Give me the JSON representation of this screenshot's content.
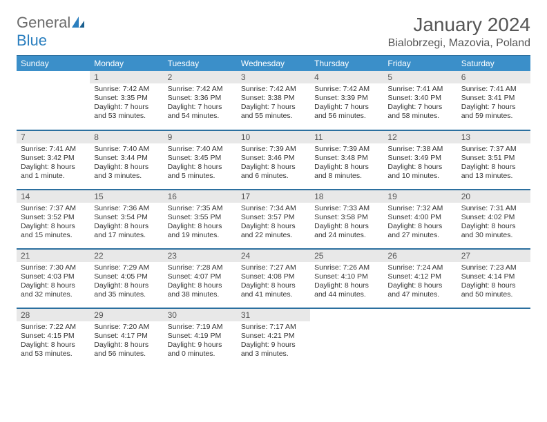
{
  "brand": {
    "word1": "General",
    "word2": "Blue"
  },
  "header": {
    "month": "January 2024",
    "location": "Bialobrzegi, Mazovia, Poland"
  },
  "colors": {
    "header_bg": "#3b8fc9",
    "header_border": "#2b6f9f",
    "row_border": "#2b6f9f",
    "daynum_bg": "#e8e8e8",
    "text": "#333333",
    "logo_gray": "#6b6b6b",
    "logo_blue": "#2b7fbf"
  },
  "weekdays": [
    "Sunday",
    "Monday",
    "Tuesday",
    "Wednesday",
    "Thursday",
    "Friday",
    "Saturday"
  ],
  "weeks": [
    [
      {
        "n": "",
        "sr": "",
        "ss": "",
        "dl": "",
        "empty": true
      },
      {
        "n": "1",
        "sr": "Sunrise: 7:42 AM",
        "ss": "Sunset: 3:35 PM",
        "dl": "Daylight: 7 hours and 53 minutes."
      },
      {
        "n": "2",
        "sr": "Sunrise: 7:42 AM",
        "ss": "Sunset: 3:36 PM",
        "dl": "Daylight: 7 hours and 54 minutes."
      },
      {
        "n": "3",
        "sr": "Sunrise: 7:42 AM",
        "ss": "Sunset: 3:38 PM",
        "dl": "Daylight: 7 hours and 55 minutes."
      },
      {
        "n": "4",
        "sr": "Sunrise: 7:42 AM",
        "ss": "Sunset: 3:39 PM",
        "dl": "Daylight: 7 hours and 56 minutes."
      },
      {
        "n": "5",
        "sr": "Sunrise: 7:41 AM",
        "ss": "Sunset: 3:40 PM",
        "dl": "Daylight: 7 hours and 58 minutes."
      },
      {
        "n": "6",
        "sr": "Sunrise: 7:41 AM",
        "ss": "Sunset: 3:41 PM",
        "dl": "Daylight: 7 hours and 59 minutes."
      }
    ],
    [
      {
        "n": "7",
        "sr": "Sunrise: 7:41 AM",
        "ss": "Sunset: 3:42 PM",
        "dl": "Daylight: 8 hours and 1 minute."
      },
      {
        "n": "8",
        "sr": "Sunrise: 7:40 AM",
        "ss": "Sunset: 3:44 PM",
        "dl": "Daylight: 8 hours and 3 minutes."
      },
      {
        "n": "9",
        "sr": "Sunrise: 7:40 AM",
        "ss": "Sunset: 3:45 PM",
        "dl": "Daylight: 8 hours and 5 minutes."
      },
      {
        "n": "10",
        "sr": "Sunrise: 7:39 AM",
        "ss": "Sunset: 3:46 PM",
        "dl": "Daylight: 8 hours and 6 minutes."
      },
      {
        "n": "11",
        "sr": "Sunrise: 7:39 AM",
        "ss": "Sunset: 3:48 PM",
        "dl": "Daylight: 8 hours and 8 minutes."
      },
      {
        "n": "12",
        "sr": "Sunrise: 7:38 AM",
        "ss": "Sunset: 3:49 PM",
        "dl": "Daylight: 8 hours and 10 minutes."
      },
      {
        "n": "13",
        "sr": "Sunrise: 7:37 AM",
        "ss": "Sunset: 3:51 PM",
        "dl": "Daylight: 8 hours and 13 minutes."
      }
    ],
    [
      {
        "n": "14",
        "sr": "Sunrise: 7:37 AM",
        "ss": "Sunset: 3:52 PM",
        "dl": "Daylight: 8 hours and 15 minutes."
      },
      {
        "n": "15",
        "sr": "Sunrise: 7:36 AM",
        "ss": "Sunset: 3:54 PM",
        "dl": "Daylight: 8 hours and 17 minutes."
      },
      {
        "n": "16",
        "sr": "Sunrise: 7:35 AM",
        "ss": "Sunset: 3:55 PM",
        "dl": "Daylight: 8 hours and 19 minutes."
      },
      {
        "n": "17",
        "sr": "Sunrise: 7:34 AM",
        "ss": "Sunset: 3:57 PM",
        "dl": "Daylight: 8 hours and 22 minutes."
      },
      {
        "n": "18",
        "sr": "Sunrise: 7:33 AM",
        "ss": "Sunset: 3:58 PM",
        "dl": "Daylight: 8 hours and 24 minutes."
      },
      {
        "n": "19",
        "sr": "Sunrise: 7:32 AM",
        "ss": "Sunset: 4:00 PM",
        "dl": "Daylight: 8 hours and 27 minutes."
      },
      {
        "n": "20",
        "sr": "Sunrise: 7:31 AM",
        "ss": "Sunset: 4:02 PM",
        "dl": "Daylight: 8 hours and 30 minutes."
      }
    ],
    [
      {
        "n": "21",
        "sr": "Sunrise: 7:30 AM",
        "ss": "Sunset: 4:03 PM",
        "dl": "Daylight: 8 hours and 32 minutes."
      },
      {
        "n": "22",
        "sr": "Sunrise: 7:29 AM",
        "ss": "Sunset: 4:05 PM",
        "dl": "Daylight: 8 hours and 35 minutes."
      },
      {
        "n": "23",
        "sr": "Sunrise: 7:28 AM",
        "ss": "Sunset: 4:07 PM",
        "dl": "Daylight: 8 hours and 38 minutes."
      },
      {
        "n": "24",
        "sr": "Sunrise: 7:27 AM",
        "ss": "Sunset: 4:08 PM",
        "dl": "Daylight: 8 hours and 41 minutes."
      },
      {
        "n": "25",
        "sr": "Sunrise: 7:26 AM",
        "ss": "Sunset: 4:10 PM",
        "dl": "Daylight: 8 hours and 44 minutes."
      },
      {
        "n": "26",
        "sr": "Sunrise: 7:24 AM",
        "ss": "Sunset: 4:12 PM",
        "dl": "Daylight: 8 hours and 47 minutes."
      },
      {
        "n": "27",
        "sr": "Sunrise: 7:23 AM",
        "ss": "Sunset: 4:14 PM",
        "dl": "Daylight: 8 hours and 50 minutes."
      }
    ],
    [
      {
        "n": "28",
        "sr": "Sunrise: 7:22 AM",
        "ss": "Sunset: 4:15 PM",
        "dl": "Daylight: 8 hours and 53 minutes."
      },
      {
        "n": "29",
        "sr": "Sunrise: 7:20 AM",
        "ss": "Sunset: 4:17 PM",
        "dl": "Daylight: 8 hours and 56 minutes."
      },
      {
        "n": "30",
        "sr": "Sunrise: 7:19 AM",
        "ss": "Sunset: 4:19 PM",
        "dl": "Daylight: 9 hours and 0 minutes."
      },
      {
        "n": "31",
        "sr": "Sunrise: 7:17 AM",
        "ss": "Sunset: 4:21 PM",
        "dl": "Daylight: 9 hours and 3 minutes."
      },
      {
        "n": "",
        "sr": "",
        "ss": "",
        "dl": "",
        "empty": true
      },
      {
        "n": "",
        "sr": "",
        "ss": "",
        "dl": "",
        "empty": true
      },
      {
        "n": "",
        "sr": "",
        "ss": "",
        "dl": "",
        "empty": true
      }
    ]
  ]
}
